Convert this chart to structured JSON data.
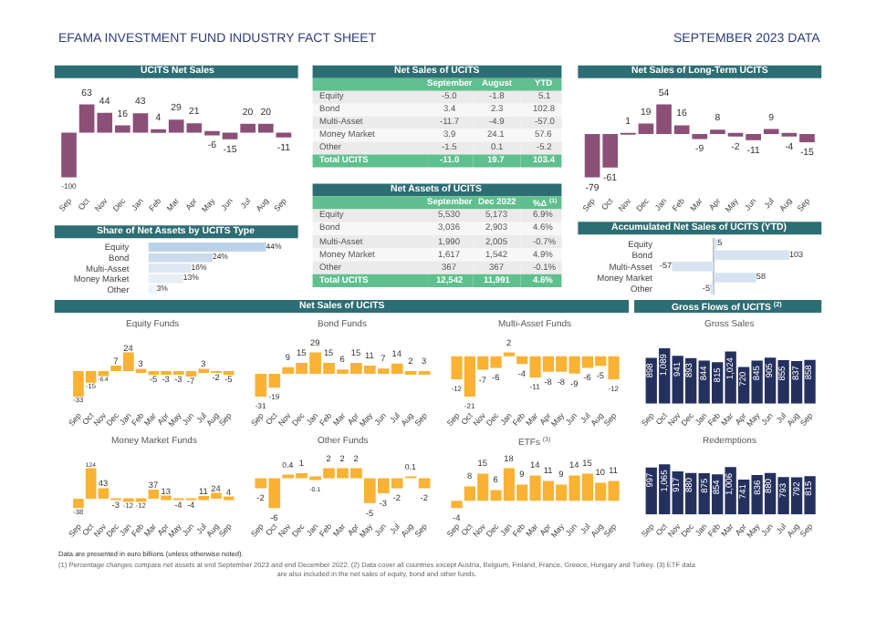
{
  "chart_data": [
    {
      "type": "other",
      "title": "EFAMA INVESTMENT FUND INDUSTRY FACT SHEET",
      "subtitle": "SEPTEMBER 2023 DATA",
      "annotations": [
        "Data are presented in euro billions (unless otherwise noted).",
        "(1) Percentage changes compare net assets at end September 2023 and end December 2022. (2) Data cover all countries except Austria, Belgium, Finland, France, Greece, Hungary and Turkey. (3) ETF data are also included in the net sales of equity, bond and other funds."
      ]
    },
    {
      "type": "bar",
      "title": "UCITS Net Sales",
      "categories": [
        "Sep",
        "Oct",
        "Nov",
        "Dec",
        "Jan",
        "Feb",
        "Mar",
        "Apr",
        "May",
        "Jun",
        "Jul",
        "Aug",
        "Sep"
      ],
      "values": [
        -100,
        63,
        44,
        16,
        43,
        4,
        29,
        21,
        -6,
        -15,
        20,
        20,
        -11
      ],
      "color": "#8c4f78",
      "data_labels": true
    },
    {
      "type": "other",
      "title": "Net Sales of UCITS",
      "categories": [
        "Equity",
        "Bond",
        "Multi-Asset",
        "Money Market",
        "Other",
        "Total UCITS"
      ],
      "series": [
        {
          "name": "September",
          "values": [
            -5.0,
            3.4,
            -11.7,
            3.9,
            -1.5,
            -11.0
          ],
          "value_labels": [
            "-5.0",
            "3.4",
            "-11.7",
            "3.9",
            "-1.5",
            "-11.0"
          ],
          "colors": [
            "#ebebeb",
            "#f7f7f7",
            "#ebebeb",
            "#f7f7f7",
            "#ebebeb",
            "#5fbf8e"
          ]
        },
        {
          "name": "August",
          "values": [
            -1.8,
            2.3,
            -4.9,
            24.1,
            0.1,
            19.7
          ],
          "value_labels": [
            "-1.8",
            "2.3",
            "-4.9",
            "24.1",
            "0.1",
            "19.7"
          ],
          "colors": [
            "#ebebeb",
            "#f7f7f7",
            "#ebebeb",
            "#f7f7f7",
            "#ebebeb",
            "#5fbf8e"
          ]
        },
        {
          "name": "YTD",
          "values": [
            5.1,
            102.8,
            -57.0,
            57.6,
            -5.2,
            103.4
          ],
          "value_labels": [
            "5.1",
            "102.8",
            "-57.0",
            "57.6",
            "-5.2",
            "103.4"
          ],
          "colors": [
            "#ebebeb",
            "#f7f7f7",
            "#ebebeb",
            "#f7f7f7",
            "#ebebeb",
            "#5fbf8e"
          ]
        }
      ]
    },
    {
      "type": "bar",
      "title": "Net Sales of Long-Term UCITS",
      "categories": [
        "Sep",
        "Oct",
        "Nov",
        "Dec",
        "Jan",
        "Feb",
        "Mar",
        "Apr",
        "May",
        "Jun",
        "Jul",
        "Aug",
        "Sep"
      ],
      "values": [
        -79,
        -61,
        1,
        19,
        54,
        16,
        -9,
        8,
        -2,
        -11,
        9,
        -4,
        -15
      ],
      "color": "#8c4f78",
      "data_labels": true
    },
    {
      "type": "other",
      "title": "Net Assets of UCITS",
      "categories": [
        "Equity",
        "Bond",
        "Multi-Asset",
        "Money Market",
        "Other",
        "Total UCITS"
      ],
      "series": [
        {
          "name": "September",
          "values": [
            5530,
            3036,
            1990,
            1617,
            367,
            12542
          ],
          "value_labels": [
            "5,530",
            "3,036",
            "1,990",
            "1,617",
            "367",
            "12,542"
          ],
          "colors": [
            "#ebebeb",
            "#f7f7f7",
            "#ebebeb",
            "#f7f7f7",
            "#ebebeb",
            "#5fbf8e"
          ]
        },
        {
          "name": "Dec 2022",
          "values": [
            5173,
            2903,
            2005,
            1542,
            367,
            11991
          ],
          "value_labels": [
            "5,173",
            "2,903",
            "2,005",
            "1,542",
            "367",
            "11,991"
          ],
          "colors": [
            "#ebebeb",
            "#f7f7f7",
            "#ebebeb",
            "#f7f7f7",
            "#ebebeb",
            "#5fbf8e"
          ]
        },
        {
          "name": "%Δ $^{(1)}$",
          "values": [
            6.9,
            4.6,
            -0.7,
            4.9,
            -0.1,
            4.6
          ],
          "value_labels": [
            "6.9%",
            "4.6%",
            "-0.7%",
            "4.9%",
            "-0.1%",
            "4.6%"
          ],
          "colors": [
            "#ebebeb",
            "#f7f7f7",
            "#ebebeb",
            "#f7f7f7",
            "#ebebeb",
            "#5fbf8e"
          ]
        }
      ]
    },
    {
      "type": "bar",
      "orientation": "horizontal",
      "title": "Share of Net Assets by UCITS Type",
      "categories": [
        "Equity",
        "Bond",
        "Multi-Asset",
        "Money Market",
        "Other"
      ],
      "values": [
        44,
        24,
        16,
        13,
        3
      ],
      "value_labels": [
        "44%",
        "24%",
        "16%",
        "13%",
        "3%"
      ],
      "colors": [
        "#bcd2e8",
        "#cddcec",
        "#dce7f2",
        "#e6eef6",
        "#eef3f9"
      ]
    },
    {
      "type": "bar",
      "orientation": "horizontal",
      "title": "Accumulated Net Sales of UCITS (YTD)",
      "categories": [
        "Equity",
        "Bond",
        "Multi-Asset",
        "Money Market",
        "Other"
      ],
      "values": [
        5,
        103,
        -57,
        58,
        -5
      ],
      "color": "#d7e4f0",
      "data_labels": true
    },
    {
      "type": "other",
      "title": "Net Sales of UCITS"
    },
    {
      "type": "bar",
      "title": "Equity Funds",
      "categories": [
        "Sep",
        "Oct",
        "Nov",
        "Dec",
        "Jan",
        "Feb",
        "Mar",
        "Apr",
        "May",
        "Jun",
        "Jul",
        "Aug",
        "Sep"
      ],
      "values": [
        -33,
        -15,
        -6.4,
        7,
        24,
        3,
        -5,
        -3,
        -3,
        -7,
        3,
        -2,
        -5
      ],
      "color": "#f9b233",
      "data_labels": true
    },
    {
      "type": "bar",
      "title": "Bond Funds",
      "categories": [
        "Sep",
        "Oct",
        "Nov",
        "Dec",
        "Jan",
        "Feb",
        "Mar",
        "Apr",
        "May",
        "Jun",
        "Jul",
        "Aug",
        "Sep"
      ],
      "values": [
        -31,
        -19,
        9,
        15,
        29,
        15,
        6,
        15,
        11,
        7,
        14,
        2,
        3
      ],
      "color": "#f9b233",
      "data_labels": true
    },
    {
      "type": "bar",
      "title": "Multi-Asset Funds",
      "categories": [
        "Sep",
        "Oct",
        "Nov",
        "Dec",
        "Jan",
        "Feb",
        "Mar",
        "Apr",
        "May",
        "Jun",
        "Jul",
        "Aug",
        "Sep"
      ],
      "values": [
        -12,
        -21,
        -7,
        -6,
        2,
        -4,
        -11,
        -8,
        -8,
        -9,
        -6,
        -5,
        -12
      ],
      "color": "#f9b233",
      "data_labels": true
    },
    {
      "type": "other",
      "title": "Gross Flows of UCITS $^{(2)}$"
    },
    {
      "type": "bar",
      "title": "Gross Sales",
      "categories": [
        "Sep",
        "Oct",
        "Nov",
        "Dec",
        "Jan",
        "Feb",
        "Mar",
        "Apr",
        "May",
        "Jun",
        "Jul",
        "Aug",
        "Sep"
      ],
      "values": [
        898,
        1089,
        941,
        893,
        844,
        815,
        1024,
        720,
        845,
        905,
        855,
        837,
        858
      ],
      "value_labels": [
        "898",
        "1,089",
        "941",
        "893",
        "844",
        "815",
        "1,024",
        "720",
        "845",
        "905",
        "855",
        "837",
        "858"
      ],
      "color": "#24305e"
    },
    {
      "type": "bar",
      "title": "Money Market Funds",
      "categories": [
        "Sep",
        "Oct",
        "Nov",
        "Dec",
        "Jan",
        "Feb",
        "Mar",
        "Apr",
        "May",
        "Jun",
        "Jul",
        "Aug",
        "Sep"
      ],
      "values": [
        -38,
        124,
        43,
        -3,
        -12,
        -12,
        37,
        13,
        -4,
        -4,
        11,
        24,
        4
      ],
      "color": "#f9b233",
      "data_labels": true
    },
    {
      "type": "bar",
      "title": "Other Funds",
      "categories": [
        "Sep",
        "Oct",
        "Nov",
        "Dec",
        "Jan",
        "Feb",
        "Mar",
        "Apr",
        "May",
        "Jun",
        "Jul",
        "Aug",
        "Sep"
      ],
      "values": [
        -2,
        -6,
        0.4,
        1,
        -0.1,
        2,
        2,
        2,
        -5,
        -3,
        -2,
        0.1,
        -2
      ],
      "color": "#f9b233",
      "data_labels": true
    },
    {
      "type": "bar",
      "title": "ETFs $^{(3)}$",
      "categories": [
        "Sep",
        "Oct",
        "Nov",
        "Dec",
        "Jan",
        "Feb",
        "Mar",
        "Apr",
        "May",
        "Jun",
        "Jul",
        "Aug",
        "Sep"
      ],
      "values": [
        -4,
        8,
        15,
        6,
        18,
        9,
        14,
        11,
        9,
        14,
        15,
        10,
        11
      ],
      "color": "#f9b233",
      "data_labels": true
    },
    {
      "type": "bar",
      "title": "Redemptions",
      "categories": [
        "Sep",
        "Oct",
        "Nov",
        "Dec",
        "Jan",
        "Feb",
        "Mar",
        "Apr",
        "May",
        "Jun",
        "Jul",
        "Aug",
        "Sep"
      ],
      "values": [
        997,
        1065,
        917,
        880,
        875,
        854,
        1006,
        741,
        836,
        880,
        793,
        792,
        815
      ],
      "value_labels": [
        "997",
        "1,065",
        "917",
        "880",
        "875",
        "854",
        "1,006",
        "741",
        "836",
        "880",
        "793",
        "792",
        "815"
      ],
      "color": "#24305e"
    }
  ]
}
